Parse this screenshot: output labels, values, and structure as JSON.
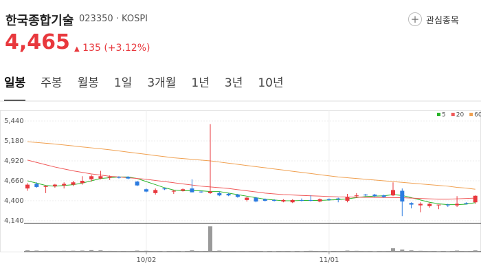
{
  "header": {
    "name": "한국종합기술",
    "code": "023350",
    "market": "KOSPI",
    "price": "4,465",
    "change": "135",
    "change_pct": "(+3.12%)",
    "watch_button": "관심종목"
  },
  "tabs": [
    "일봉",
    "주봉",
    "월봉",
    "1일",
    "3개월",
    "1년",
    "3년",
    "10년"
  ],
  "chart_data": {
    "type": "candlestick",
    "categories": [
      null,
      null,
      null,
      null,
      null,
      null,
      null,
      null,
      null,
      null,
      null,
      null,
      null,
      "10/02",
      null,
      null,
      null,
      null,
      null,
      null,
      null,
      null,
      null,
      null,
      null,
      null,
      null,
      null,
      null,
      null,
      null,
      null,
      null,
      "11/01",
      null,
      null,
      null,
      null,
      null,
      null,
      null,
      null,
      null,
      null,
      null,
      null,
      null,
      null,
      null,
      null
    ],
    "open": [
      4560,
      4620,
      4580,
      4590,
      4600,
      4610,
      4630,
      4680,
      4690,
      4700,
      4710,
      4710,
      4650,
      4550,
      4500,
      4560,
      4520,
      4530,
      4560,
      4520,
      4500,
      4500,
      4490,
      4480,
      4410,
      4440,
      4420,
      4410,
      4390,
      4380,
      4410,
      4410,
      4390,
      4420,
      4430,
      4400,
      4460,
      4480,
      4480,
      4470,
      4470,
      4530,
      4370,
      4340,
      4330,
      4340,
      4350,
      4340,
      4370,
      4380
    ],
    "high": [
      4630,
      4640,
      4600,
      4620,
      4640,
      4660,
      4720,
      4740,
      4790,
      4730,
      4720,
      4720,
      4660,
      4560,
      4560,
      4570,
      4540,
      4560,
      4680,
      4530,
      5400,
      4520,
      4500,
      4490,
      4450,
      4450,
      4430,
      4420,
      4420,
      4420,
      4430,
      4470,
      4430,
      4430,
      4440,
      4490,
      4500,
      4490,
      4490,
      4480,
      4640,
      4560,
      4380,
      4380,
      4370,
      4350,
      4360,
      4460,
      4380,
      4470
    ],
    "low": [
      4530,
      4570,
      4500,
      4570,
      4560,
      4590,
      4610,
      4650,
      4680,
      4670,
      4690,
      4680,
      4590,
      4510,
      4480,
      4540,
      4490,
      4520,
      4510,
      4500,
      4490,
      4460,
      4460,
      4440,
      4390,
      4380,
      4390,
      4390,
      4380,
      4370,
      4390,
      4390,
      4380,
      4400,
      4380,
      4380,
      4440,
      4460,
      4450,
      4440,
      4460,
      4200,
      4300,
      4250,
      4310,
      4290,
      4320,
      4320,
      4350,
      4360
    ],
    "close": [
      4610,
      4580,
      4590,
      4610,
      4620,
      4640,
      4660,
      4720,
      4720,
      4710,
      4700,
      4690,
      4600,
      4520,
      4540,
      4550,
      4530,
      4550,
      4510,
      4510,
      4520,
      4470,
      4470,
      4450,
      4440,
      4390,
      4400,
      4400,
      4410,
      4410,
      4400,
      4400,
      4420,
      4410,
      4420,
      4450,
      4470,
      4470,
      4460,
      4450,
      4540,
      4390,
      4350,
      4360,
      4360,
      4350,
      4340,
      4360,
      4360,
      4465
    ],
    "volume": [
      3000,
      2500,
      2000,
      1800,
      2000,
      2200,
      2500,
      3500,
      3000,
      1800,
      1500,
      1500,
      2500,
      2000,
      1500,
      1200,
      1500,
      1200,
      3000,
      1500,
      60000,
      2500,
      1800,
      1500,
      1500,
      1800,
      1200,
      1200,
      1500,
      1200,
      1200,
      2000,
      1500,
      1200,
      1500,
      2500,
      2000,
      1500,
      1200,
      1500,
      8000,
      5000,
      3000,
      2000,
      1500,
      1200,
      1200,
      2500,
      1500,
      3000
    ],
    "vlim": [
      0,
      62000
    ],
    "up_color": "#e8383d",
    "down_color": "#2b7be0",
    "volume_color": "#9a9a9a",
    "series": [
      {
        "name": "5",
        "color": "#2ab52a",
        "values": [
          4660,
          4630,
          4600,
          4590,
          4600,
          4610,
          4630,
          4660,
          4690,
          4700,
          4710,
          4710,
          4690,
          4650,
          4610,
          4570,
          4540,
          4530,
          4530,
          4530,
          4520,
          4520,
          4500,
          4480,
          4460,
          4440,
          4420,
          4410,
          4400,
          4400,
          4405,
          4405,
          4405,
          4410,
          4415,
          4425,
          4440,
          4455,
          4460,
          4465,
          4480,
          4470,
          4440,
          4410,
          4380,
          4360,
          4350,
          4350,
          4355,
          4375
        ]
      },
      {
        "name": "20",
        "color": "#f05a5a",
        "values": [
          4930,
          4900,
          4870,
          4840,
          4815,
          4790,
          4770,
          4750,
          4735,
          4720,
          4710,
          4700,
          4690,
          4680,
          4665,
          4650,
          4635,
          4620,
          4605,
          4590,
          4580,
          4570,
          4560,
          4545,
          4530,
          4515,
          4500,
          4490,
          4480,
          4475,
          4470,
          4465,
          4460,
          4455,
          4450,
          4448,
          4446,
          4445,
          4444,
          4443,
          4442,
          4440,
          4435,
          4430,
          4425,
          4420,
          4420,
          4425,
          4430,
          4435
        ]
      },
      {
        "name": "60",
        "color": "#f0a050",
        "values": [
          5170,
          5160,
          5150,
          5140,
          5128,
          5115,
          5102,
          5090,
          5078,
          5065,
          5050,
          5035,
          5020,
          5005,
          4990,
          4975,
          4960,
          4950,
          4940,
          4930,
          4920,
          4905,
          4890,
          4875,
          4860,
          4845,
          4830,
          4815,
          4800,
          4785,
          4770,
          4755,
          4740,
          4725,
          4710,
          4700,
          4690,
          4680,
          4670,
          4660,
          4650,
          4640,
          4630,
          4620,
          4610,
          4600,
          4590,
          4575,
          4565,
          4550
        ]
      }
    ],
    "ylim": [
      4104,
      5539
    ],
    "yticks": [
      {
        "value": 4140,
        "label": "4,140"
      },
      {
        "value": 4400,
        "label": "4,400"
      },
      {
        "value": 4660,
        "label": "4,660"
      },
      {
        "value": 4920,
        "label": "4,920"
      },
      {
        "value": 5180,
        "label": "5,180"
      },
      {
        "value": 5440,
        "label": "5,440"
      }
    ],
    "grid": true,
    "legend": "top-right"
  }
}
